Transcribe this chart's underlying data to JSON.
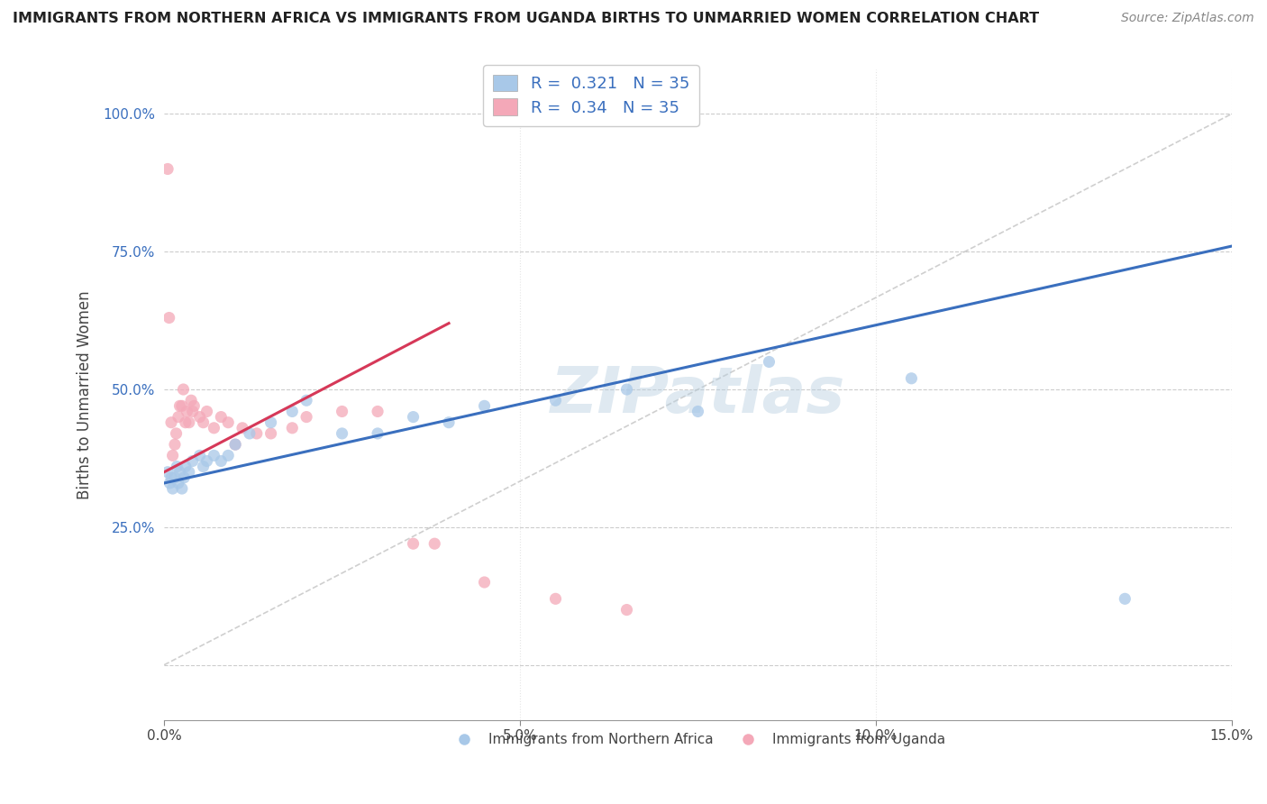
{
  "title": "IMMIGRANTS FROM NORTHERN AFRICA VS IMMIGRANTS FROM UGANDA BIRTHS TO UNMARRIED WOMEN CORRELATION CHART",
  "source": "Source: ZipAtlas.com",
  "ylabel": "Births to Unmarried Women",
  "xlim": [
    0.0,
    15.0
  ],
  "ylim": [
    -10.0,
    108.0
  ],
  "x_ticks": [
    0.0,
    5.0,
    10.0,
    15.0
  ],
  "x_tick_labels": [
    "0.0%",
    "5.0%",
    "10.0%",
    "15.0%"
  ],
  "y_ticks": [
    0.0,
    25.0,
    50.0,
    75.0,
    100.0
  ],
  "y_tick_labels": [
    "",
    "25.0%",
    "50.0%",
    "75.0%",
    "100.0%"
  ],
  "R_blue": 0.321,
  "N_blue": 35,
  "R_pink": 0.34,
  "N_pink": 35,
  "legend_labels": [
    "Immigrants from Northern Africa",
    "Immigrants from Uganda"
  ],
  "blue_color": "#a8c8e8",
  "pink_color": "#f4a8b8",
  "blue_line_color": "#3a6fbe",
  "pink_line_color": "#d63858",
  "watermark": "ZIPatlas",
  "blue_scatter_x": [
    0.05,
    0.08,
    0.1,
    0.12,
    0.15,
    0.18,
    0.2,
    0.22,
    0.25,
    0.28,
    0.3,
    0.35,
    0.4,
    0.5,
    0.55,
    0.6,
    0.7,
    0.8,
    0.9,
    1.0,
    1.2,
    1.5,
    1.8,
    2.0,
    2.5,
    3.0,
    3.5,
    4.0,
    4.5,
    5.5,
    6.5,
    7.5,
    8.5,
    10.5,
    13.5
  ],
  "blue_scatter_y": [
    35,
    33,
    34,
    32,
    34,
    36,
    33,
    35,
    32,
    34,
    36,
    35,
    37,
    38,
    36,
    37,
    38,
    37,
    38,
    40,
    42,
    44,
    46,
    48,
    42,
    42,
    45,
    44,
    47,
    48,
    50,
    46,
    55,
    52,
    12
  ],
  "pink_scatter_x": [
    0.05,
    0.07,
    0.1,
    0.12,
    0.15,
    0.17,
    0.2,
    0.22,
    0.25,
    0.27,
    0.3,
    0.32,
    0.35,
    0.38,
    0.4,
    0.42,
    0.5,
    0.55,
    0.6,
    0.7,
    0.8,
    0.9,
    1.0,
    1.1,
    1.3,
    1.5,
    1.8,
    2.0,
    2.5,
    3.0,
    3.5,
    3.8,
    4.5,
    5.5,
    6.5
  ],
  "pink_scatter_y": [
    90,
    63,
    44,
    38,
    40,
    42,
    45,
    47,
    47,
    50,
    44,
    46,
    44,
    48,
    46,
    47,
    45,
    44,
    46,
    43,
    45,
    44,
    40,
    43,
    42,
    42,
    43,
    45,
    46,
    46,
    22,
    22,
    15,
    12,
    10
  ],
  "blue_line_x0": 0.0,
  "blue_line_y0": 33.0,
  "blue_line_x1": 15.0,
  "blue_line_y1": 76.0,
  "pink_line_x0": 0.0,
  "pink_line_y0": 35.0,
  "pink_line_x1": 4.0,
  "pink_line_y1": 62.0
}
